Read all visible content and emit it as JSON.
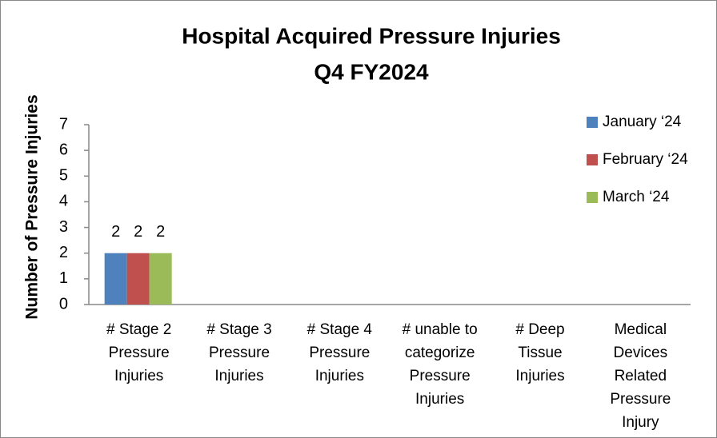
{
  "chart_data": {
    "type": "bar",
    "title": "Hospital Acquired Pressure Injuries",
    "subtitle": "Q4 FY2024",
    "y_label": "Number of Pressure Injuries",
    "categories": [
      "# Stage 2 Pressure Injuries",
      "# Stage 3 Pressure Injuries",
      "# Stage 4 Pressure Injuries",
      "# unable to categorize Pressure Injuries",
      "# Deep Tissue Injuries",
      "Medical Devices Related Pressure Injury"
    ],
    "series": [
      {
        "name": "January ‘24",
        "color": "#4f81bd",
        "values": [
          2,
          0,
          0,
          0,
          0,
          0
        ],
        "value_labels": [
          2,
          null,
          null,
          null,
          null,
          null
        ]
      },
      {
        "name": "February ‘24",
        "color": "#c0504d",
        "values": [
          2,
          0,
          0,
          0,
          0,
          0
        ],
        "value_labels": [
          2,
          null,
          null,
          null,
          null,
          null
        ]
      },
      {
        "name": "March ‘24",
        "color": "#9bbb59",
        "values": [
          2,
          0,
          0,
          0,
          0,
          0
        ],
        "value_labels": [
          2,
          null,
          null,
          null,
          null,
          null
        ]
      }
    ],
    "ylim": [
      0,
      7
    ],
    "yticks": [
      0,
      1,
      2,
      3,
      4,
      5,
      6,
      7
    ],
    "grid": false,
    "legend": "right"
  }
}
